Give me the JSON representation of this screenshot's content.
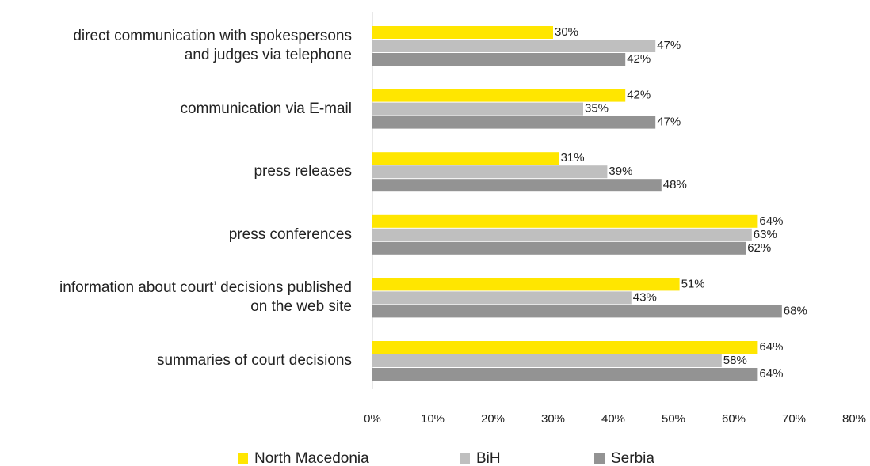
{
  "chart_data": {
    "type": "barh",
    "categories": [
      "direct communication with spokespersons and judges via telephone",
      "communication via E-mail",
      "press releases",
      "press conferences",
      "information about court’ decisions published on the web site",
      "summaries of court decisions"
    ],
    "series": [
      {
        "name": "North Macedonia",
        "color": "#ffe600",
        "values": [
          30,
          42,
          31,
          64,
          51,
          64
        ],
        "value_labels": [
          "30%",
          "42%",
          "31%",
          "64%",
          "51%",
          "64%"
        ]
      },
      {
        "name": "BiH",
        "color": "#bfbfbf",
        "values": [
          47,
          35,
          39,
          63,
          43,
          58
        ],
        "value_labels": [
          "47%",
          "35%",
          "39%",
          "63%",
          "43%",
          "58%"
        ]
      },
      {
        "name": "Serbia",
        "color": "#939393",
        "values": [
          42,
          47,
          48,
          62,
          68,
          64
        ],
        "value_labels": [
          "42%",
          "47%",
          "48%",
          "62%",
          "68%",
          "64%"
        ]
      }
    ],
    "xlim": [
      0,
      80
    ],
    "xticks": [
      {
        "value": 0,
        "label": "0%"
      },
      {
        "value": 10,
        "label": "10%"
      },
      {
        "value": 20,
        "label": "20%"
      },
      {
        "value": 30,
        "label": "30%"
      },
      {
        "value": 40,
        "label": "40%"
      },
      {
        "value": 50,
        "label": "50%"
      },
      {
        "value": 60,
        "label": "60%"
      },
      {
        "value": 70,
        "label": "70%"
      },
      {
        "value": 80,
        "label": "80%"
      }
    ],
    "legend": "bottom"
  }
}
